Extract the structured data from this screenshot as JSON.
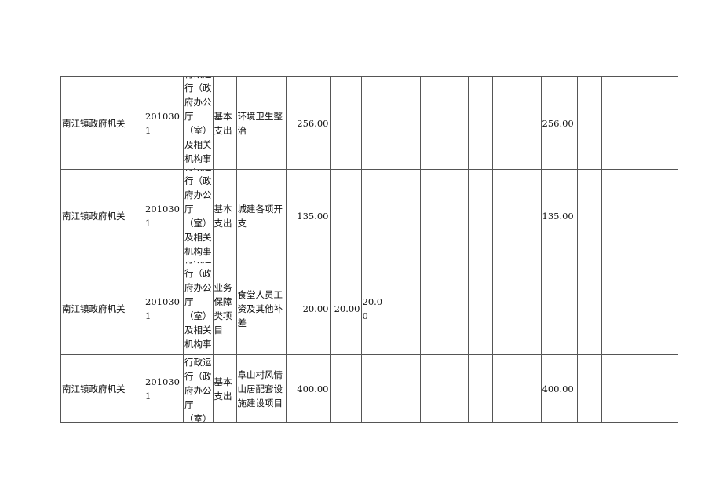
{
  "rows": [
    {
      "unit": "南江镇政府机关",
      "code": "2010301",
      "category": "行政运行（政府办公厅（室）及相关机构事务）",
      "type": "基本支出",
      "item": "环境卫生整治",
      "total": "256.00",
      "c7": "",
      "c8": "",
      "c15": "256.00"
    },
    {
      "unit": "南江镇政府机关",
      "code": "2010301",
      "category": "行政运行（政府办公厅（室）及相关机构事务）",
      "type": "基本支出",
      "item": "城建各项开支",
      "total": "135.00",
      "c7": "",
      "c8": "",
      "c15": "135.00"
    },
    {
      "unit": "南江镇政府机关",
      "code": "2010301",
      "category": "行政运行（政府办公厅（室）及相关机构事务）",
      "type": "业务保障类项目",
      "item": "食堂人员工资及其他补差",
      "total": "20.00",
      "c7": "20.00",
      "c8": "20.00",
      "c15": ""
    },
    {
      "unit": "南江镇政府机关",
      "code": "2010301",
      "category": "行政运行（政府办公厅（室）及相关",
      "type": "基本支出",
      "item": "阜山村风情山居配套设施建设项目",
      "total": "400.00",
      "c7": "",
      "c8": "",
      "c15": "400.00"
    }
  ]
}
